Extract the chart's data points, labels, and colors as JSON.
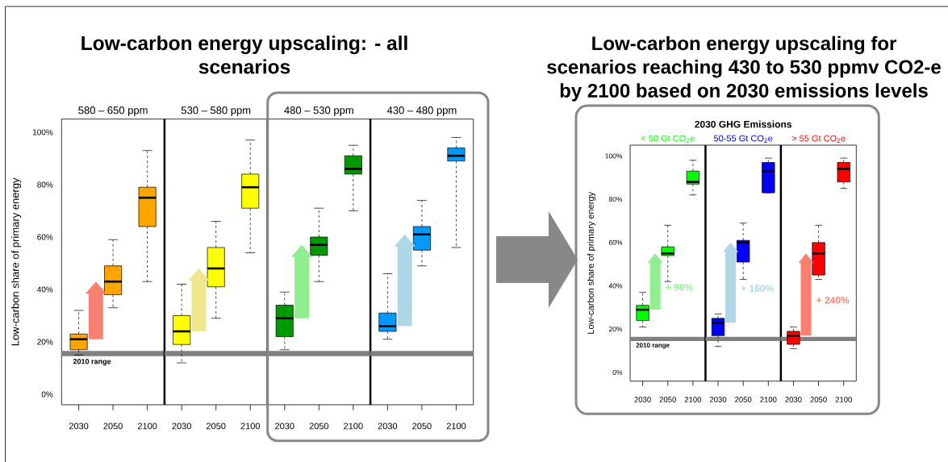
{
  "chart_data": [
    {
      "type": "box",
      "title": "Low-carbon energy upscaling: - all scenarios",
      "subtitle": "580 – 650 ppm",
      "ylabel": "Low-carbon share of primary energy",
      "categories": [
        "2030",
        "2050",
        "2100"
      ],
      "color": "#ffa500",
      "boxes": [
        {
          "low": 15,
          "q1": 17,
          "median": 21,
          "q3": 23,
          "high": 32
        },
        {
          "low": 33,
          "q1": 38,
          "median": 43,
          "q3": 49,
          "high": 59
        },
        {
          "low": 43,
          "q1": 64,
          "median": 75,
          "q3": 79,
          "high": 93
        }
      ],
      "ylim": [
        -4,
        105
      ],
      "yticks": [
        {
          "value": 0,
          "label": "0%"
        },
        {
          "value": 20,
          "label": "20%"
        },
        {
          "value": 40,
          "label": "40%"
        },
        {
          "value": 60,
          "label": "60%"
        },
        {
          "value": 80,
          "label": "80%"
        },
        {
          "value": 100,
          "label": "100%"
        }
      ],
      "bands": [
        {
          "axis": "y",
          "from": 14.5,
          "to": 16.5,
          "label": "2010 range",
          "color": "#808080"
        }
      ]
    },
    {
      "type": "box",
      "subtitle": "530 – 580 ppm",
      "categories": [
        "2030",
        "2050",
        "2100"
      ],
      "color": "#ffff00",
      "boxes": [
        {
          "low": 12,
          "q1": 19,
          "median": 24,
          "q3": 30,
          "high": 42
        },
        {
          "low": 29,
          "q1": 41,
          "median": 48,
          "q3": 56,
          "high": 66
        },
        {
          "low": 54,
          "q1": 71,
          "median": 79,
          "q3": 84,
          "high": 97
        }
      ],
      "ylim": [
        -4,
        105
      ],
      "bands": [
        {
          "axis": "y",
          "from": 14.5,
          "to": 16.5,
          "color": "#808080"
        }
      ],
      "tick_labels": "x"
    },
    {
      "type": "box",
      "subtitle": "480 – 530 ppm",
      "categories": [
        "2030",
        "2050",
        "2100"
      ],
      "color": "#009900",
      "boxes": [
        {
          "low": 17,
          "q1": 22,
          "median": 29,
          "q3": 34,
          "high": 39
        },
        {
          "low": 43,
          "q1": 53,
          "median": 57,
          "q3": 60,
          "high": 71
        },
        {
          "low": 70,
          "q1": 84,
          "median": 86,
          "q3": 91,
          "high": 95
        }
      ],
      "ylim": [
        -4,
        105
      ],
      "bands": [
        {
          "axis": "y",
          "from": 14.5,
          "to": 16.5,
          "color": "#808080"
        }
      ],
      "tick_labels": "x"
    },
    {
      "type": "box",
      "subtitle": "430 – 480 ppm",
      "categories": [
        "2030",
        "2050",
        "2100"
      ],
      "color": "#0099ff",
      "boxes": [
        {
          "low": 21,
          "q1": 24,
          "median": 26,
          "q3": 31,
          "high": 46
        },
        {
          "low": 49,
          "q1": 55,
          "median": 61,
          "q3": 64,
          "high": 74
        },
        {
          "low": 56,
          "q1": 89,
          "median": 91,
          "q3": 94,
          "high": 98
        }
      ],
      "ylim": [
        -4,
        105
      ],
      "bands": [
        {
          "axis": "y",
          "from": 14.5,
          "to": 16.5,
          "color": "#808080"
        }
      ],
      "tick_labels": "x"
    },
    {
      "type": "box",
      "title": "Low-carbon energy upscaling for scenarios reaching 430 to 530 ppmv CO2-e by 2100 based on 2030 emissions levels",
      "ylabel": "Low-carbon share of primary energy",
      "categories": [
        "2030",
        "2050",
        "2100"
      ],
      "series": [
        {
          "name": "< 50 Gt CO$_{2}$e",
          "color": "#00ff00",
          "boxes": [
            {
              "low": 21,
              "q1": 24,
              "median": 29,
              "q3": 31,
              "high": 37
            },
            {
              "low": 42,
              "q1": 54,
              "median": 55,
              "q3": 58,
              "high": 68
            },
            {
              "low": 82,
              "q1": 87,
              "median": 88,
              "q3": 93,
              "high": 98
            }
          ]
        }
      ],
      "ylim": [
        -4,
        105
      ],
      "yticks": [
        {
          "value": 0,
          "label": "0%"
        },
        {
          "value": 20,
          "label": "20%"
        },
        {
          "value": 40,
          "label": "40%"
        },
        {
          "value": 60,
          "label": "60%"
        },
        {
          "value": 80,
          "label": "80%"
        },
        {
          "value": 100,
          "label": "100%"
        }
      ],
      "bands": [
        {
          "axis": "y",
          "from": 14.5,
          "to": 16.5,
          "label": "2010 range",
          "color": "#808080"
        }
      ],
      "annotations": [
        "+ 90%"
      ]
    },
    {
      "type": "box",
      "subtitle": "2030 GHG Emissions",
      "categories": [
        "2030",
        "2050",
        "2100"
      ],
      "series": [
        {
          "name": "50-55 Gt CO$_{2}$e",
          "color": "#0000ff",
          "boxes": [
            {
              "low": 12,
              "q1": 17,
              "median": 23,
              "q3": 25,
              "high": 27
            },
            {
              "low": 43,
              "q1": 51,
              "median": 60,
              "q3": 61,
              "high": 69
            },
            {
              "low": 83,
              "q1": 83,
              "median": 93,
              "q3": 97,
              "high": 99
            }
          ]
        }
      ],
      "ylim": [
        -4,
        105
      ],
      "bands": [
        {
          "axis": "y",
          "from": 14.5,
          "to": 16.5,
          "color": "#808080"
        }
      ],
      "annotations": [
        "+ 160%"
      ],
      "tick_labels": "x"
    },
    {
      "type": "box",
      "categories": [
        "2030",
        "2050",
        "2100"
      ],
      "series": [
        {
          "name": "> 55 Gt CO$_{2}$e",
          "color": "#ff0000",
          "boxes": [
            {
              "low": 11,
              "q1": 13,
              "median": 17,
              "q3": 19,
              "high": 21
            },
            {
              "low": 43,
              "q1": 45,
              "median": 55,
              "q3": 60,
              "high": 68
            },
            {
              "low": 85,
              "q1": 88,
              "median": 94,
              "q3": 97,
              "high": 99
            }
          ]
        }
      ],
      "ylim": [
        -4,
        105
      ],
      "bands": [
        {
          "axis": "y",
          "from": 14.5,
          "to": 16.5,
          "color": "#808080"
        }
      ],
      "annotations": [
        "+ 240%"
      ],
      "tick_labels": "x"
    }
  ]
}
